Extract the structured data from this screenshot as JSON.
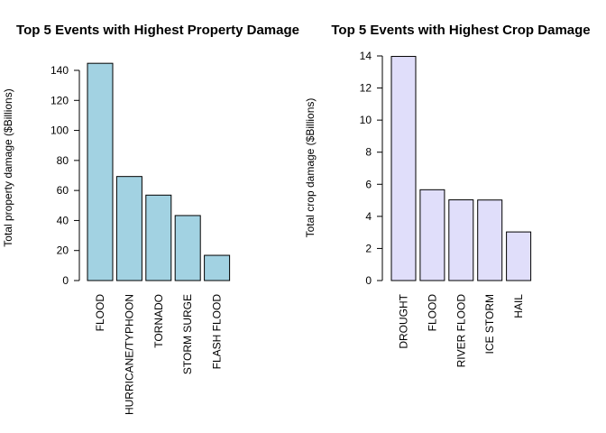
{
  "chart_data": [
    {
      "type": "bar",
      "title": "Top 5 Events with Highest Property Damage",
      "xlabel": "",
      "ylabel": "Total property damage ($Billions)",
      "categories": [
        "FLOOD",
        "HURRICANE/TYPHOON",
        "TORNADO",
        "STORM SURGE",
        "FLASH FLOOD"
      ],
      "values": [
        144.7,
        69.3,
        56.9,
        43.3,
        16.8
      ],
      "ylim": [
        0,
        140
      ],
      "yticks": [
        "0",
        "20",
        "40",
        "60",
        "80",
        "100",
        "120",
        "140"
      ],
      "bar_color": "#a2d2e2",
      "grid": false,
      "legend": "none"
    },
    {
      "type": "bar",
      "title": "Top 5 Events with Highest Crop Damage",
      "xlabel": "",
      "ylabel": "Total crop damage ($Billions)",
      "categories": [
        "DROUGHT",
        "FLOOD",
        "RIVER FLOOD",
        "ICE STORM",
        "HAIL"
      ],
      "values": [
        13.97,
        5.66,
        5.03,
        5.02,
        3.03
      ],
      "ylim": [
        0,
        14
      ],
      "yticks": [
        "0",
        "2",
        "4",
        "6",
        "8",
        "10",
        "12",
        "14"
      ],
      "bar_color": "#e0defa",
      "grid": false,
      "legend": "none"
    }
  ]
}
